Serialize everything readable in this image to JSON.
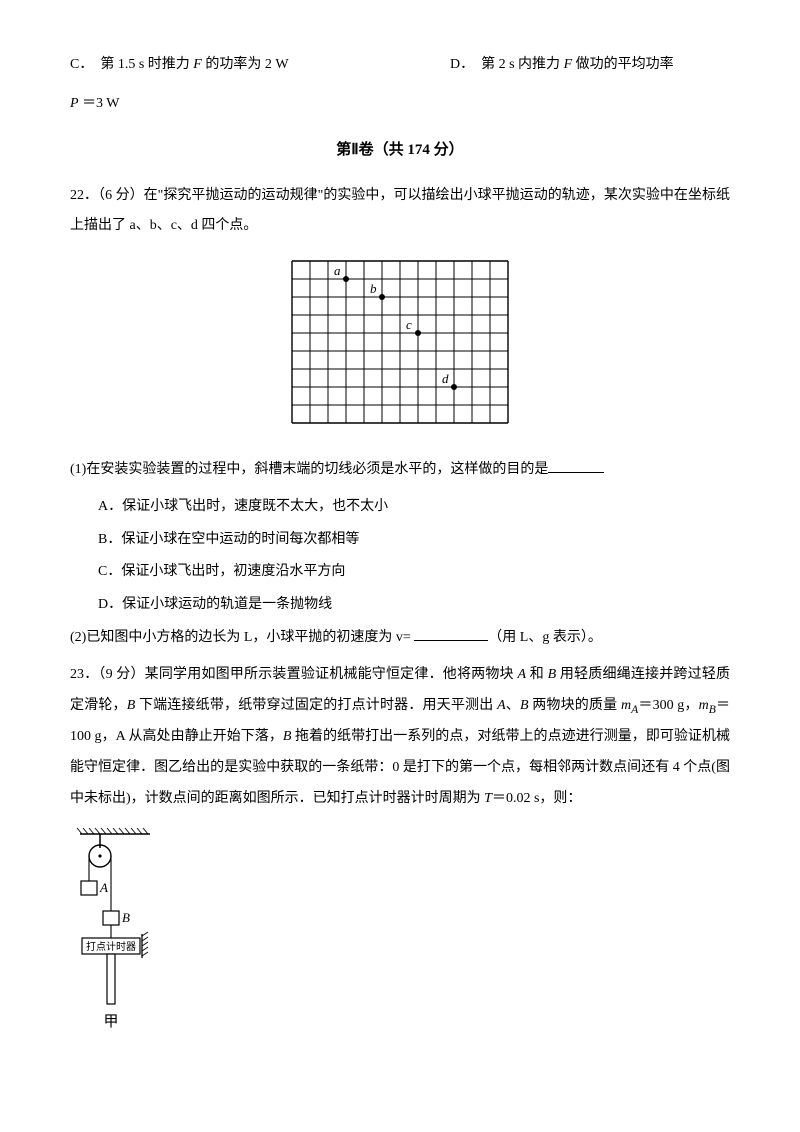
{
  "q21": {
    "option_c": "C．  第 1.5 s 时推力 F 的功率为 2 W",
    "option_d": "D．  第 2 s 内推力 F 做功的平均功率",
    "option_d_cont": "P ＝3 W"
  },
  "section2_title": "第Ⅱ卷（共 174 分）",
  "q22": {
    "header": "22．（6 分）在\"探究平抛运动的运动规律\"的实验中，可以描绘出小球平抛运动的轨迹，某次实验中在坐标纸上描出了 a、b、c、d 四个点。",
    "grid": {
      "cols": 12,
      "rows": 9,
      "cell": 18,
      "points": [
        {
          "label": "a",
          "col": 3,
          "row": 1
        },
        {
          "label": "b",
          "col": 5,
          "row": 2
        },
        {
          "label": "c",
          "col": 7,
          "row": 4
        },
        {
          "label": "d",
          "col": 9,
          "row": 7
        }
      ],
      "stroke": "#000000",
      "bg": "#ffffff",
      "labelsize": 13
    },
    "sub1": "(1)在安装实验装置的过程中，斜槽末端的切线必须是水平的，这样做的目的是",
    "sub1_blank_width": 56,
    "opts": {
      "A": "A．保证小球飞出时，速度既不太大，也不太小",
      "B": "B．保证小球在空中运动的时间每次都相等",
      "C": "C．保证小球飞出时，初速度沿水平方向",
      "D": "D．保证小球运动的轨道是一条抛物线"
    },
    "sub2_a": "(2)已知图中小方格的边长为 L，小球平抛的初速度为 v= ",
    "sub2_blank_width": 74,
    "sub2_b": "（用 L、g 表示）。"
  },
  "q23": {
    "body": "23．（9 分）某同学用如图甲所示装置验证机械能守恒定律．他将两物块 A 和 B 用轻质细绳连接并跨过轻质定滑轮，B 下端连接纸带，纸带穿过固定的打点计时器．用天平测出 A、B 两物块的质量 mA＝300 g，mB＝100 g，A 从高处由静止开始下落，B 拖着的纸带打出一系列的点，对纸带上的点迹进行测量，即可验证机械能守恒定律．图乙给出的是实验中获取的一条纸带：0 是打下的第一个点，每相邻两计数点间还有 4 个点(图中未标出)，计数点间的距离如图所示．已知打点计时器计时周期为 T＝0.02 s，则：",
    "fig": {
      "label_A": "A",
      "label_B": "B",
      "ticker": "打点计时器",
      "caption": "甲",
      "stroke": "#000000",
      "font": 11
    }
  }
}
